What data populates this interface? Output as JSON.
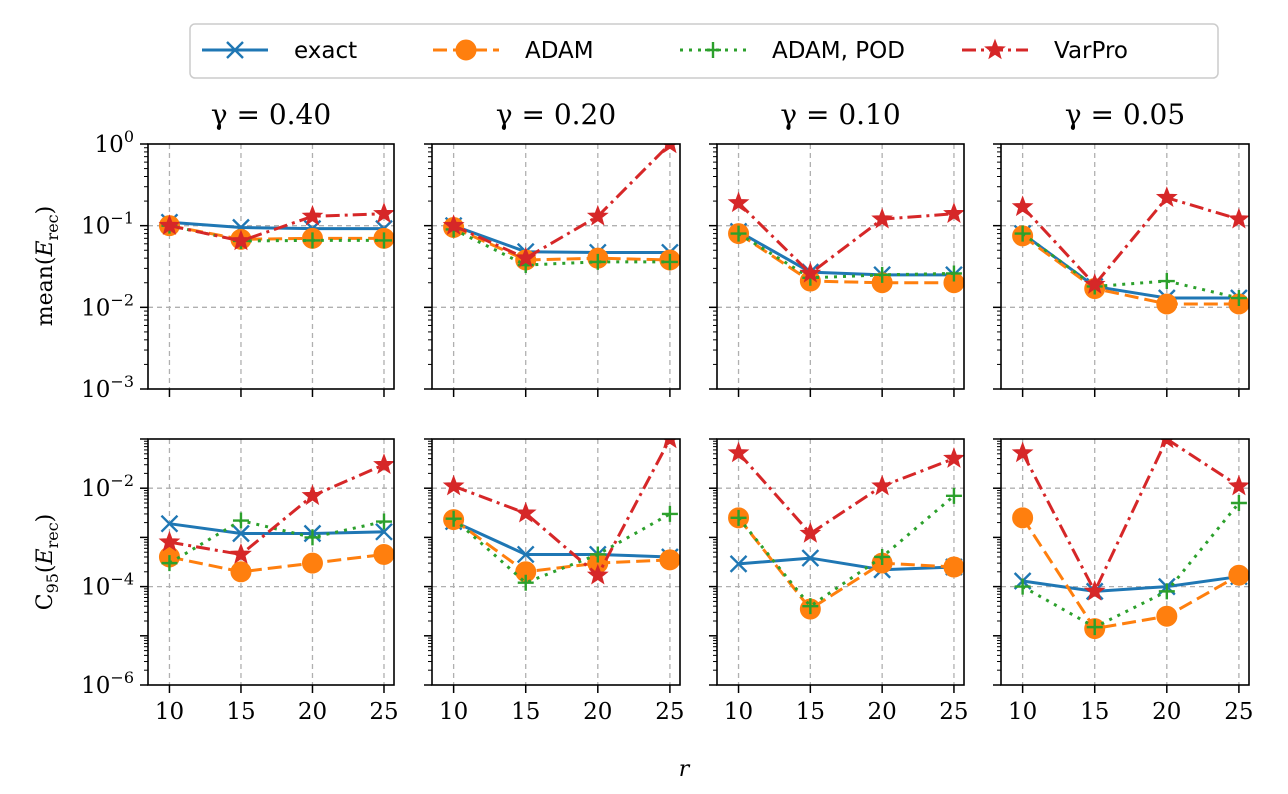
{
  "legend": {
    "entries": [
      {
        "label": "exact",
        "color": "#1f77b4",
        "marker": "x",
        "dash": "solid"
      },
      {
        "label": "ADAM",
        "color": "#ff7f0e",
        "marker": "circle",
        "dash": "dashed"
      },
      {
        "label": "ADAM, POD",
        "color": "#2ca02c",
        "marker": "plus",
        "dash": "dotted"
      },
      {
        "label": "VarPro",
        "color": "#d62728",
        "marker": "star",
        "dash": "dashdot"
      }
    ]
  },
  "xlabel": "r",
  "row_labels": [
    "mean(E",
    "C"
  ],
  "row_label_parts": {
    "mean": {
      "main": "mean(",
      "var": "E",
      "sub": "rec",
      "close": ")"
    },
    "c95": {
      "main": "C",
      "sub1": "95",
      "open": "(",
      "var": "E",
      "sub": "rec",
      "close": ")"
    }
  },
  "column_titles": [
    "γ = 0.40",
    "γ = 0.20",
    "γ = 0.10",
    "γ = 0.05"
  ],
  "chart_data": [
    {
      "type": "line",
      "title": "γ = 0.40",
      "row": "mean",
      "yscale": "log",
      "ylim": [
        0.001,
        1
      ],
      "x": [
        10,
        15,
        20,
        25
      ],
      "series": [
        {
          "name": "exact",
          "values": [
            0.11,
            0.095,
            0.092,
            0.092
          ]
        },
        {
          "name": "ADAM",
          "values": [
            0.1,
            0.068,
            0.07,
            0.07
          ]
        },
        {
          "name": "ADAM, POD",
          "values": [
            0.1,
            0.065,
            0.066,
            0.066
          ]
        },
        {
          "name": "VarPro",
          "values": [
            0.1,
            0.065,
            0.13,
            0.14
          ]
        }
      ]
    },
    {
      "type": "line",
      "title": "γ = 0.20",
      "row": "mean",
      "yscale": "log",
      "ylim": [
        0.001,
        1
      ],
      "x": [
        10,
        15,
        20,
        25
      ],
      "series": [
        {
          "name": "exact",
          "values": [
            0.1,
            0.048,
            0.047,
            0.047
          ]
        },
        {
          "name": "ADAM",
          "values": [
            0.095,
            0.038,
            0.04,
            0.038
          ]
        },
        {
          "name": "ADAM, POD",
          "values": [
            0.09,
            0.033,
            0.036,
            0.036
          ]
        },
        {
          "name": "VarPro",
          "values": [
            0.1,
            0.04,
            0.13,
            1.0
          ]
        }
      ]
    },
    {
      "type": "line",
      "title": "γ = 0.10",
      "row": "mean",
      "yscale": "log",
      "ylim": [
        0.001,
        1
      ],
      "x": [
        10,
        15,
        20,
        25
      ],
      "series": [
        {
          "name": "exact",
          "values": [
            0.085,
            0.027,
            0.025,
            0.025
          ]
        },
        {
          "name": "ADAM",
          "values": [
            0.08,
            0.021,
            0.02,
            0.02
          ]
        },
        {
          "name": "ADAM, POD",
          "values": [
            0.08,
            0.023,
            0.025,
            0.026
          ]
        },
        {
          "name": "VarPro",
          "values": [
            0.19,
            0.026,
            0.12,
            0.14
          ]
        }
      ]
    },
    {
      "type": "line",
      "title": "γ = 0.05",
      "row": "mean",
      "yscale": "log",
      "ylim": [
        0.001,
        1
      ],
      "x": [
        10,
        15,
        20,
        25
      ],
      "series": [
        {
          "name": "exact",
          "values": [
            0.08,
            0.018,
            0.013,
            0.013
          ]
        },
        {
          "name": "ADAM",
          "values": [
            0.075,
            0.017,
            0.011,
            0.011
          ]
        },
        {
          "name": "ADAM, POD",
          "values": [
            0.08,
            0.018,
            0.021,
            0.013
          ]
        },
        {
          "name": "VarPro",
          "values": [
            0.17,
            0.019,
            0.22,
            0.12
          ]
        }
      ]
    },
    {
      "type": "line",
      "row": "c95",
      "yscale": "log",
      "ylim": [
        1e-06,
        0.1
      ],
      "x": [
        10,
        15,
        20,
        25
      ],
      "series": [
        {
          "name": "exact",
          "values": [
            0.0019,
            0.0012,
            0.0012,
            0.0013
          ]
        },
        {
          "name": "ADAM",
          "values": [
            0.0004,
            0.0002,
            0.0003,
            0.00045
          ]
        },
        {
          "name": "ADAM, POD",
          "values": [
            0.0003,
            0.0022,
            0.001,
            0.0021
          ]
        },
        {
          "name": "VarPro",
          "values": [
            0.0008,
            0.00045,
            0.007,
            0.03
          ]
        }
      ]
    },
    {
      "type": "line",
      "row": "c95",
      "yscale": "log",
      "ylim": [
        1e-06,
        0.1
      ],
      "x": [
        10,
        15,
        20,
        25
      ],
      "series": [
        {
          "name": "exact",
          "values": [
            0.0021,
            0.00045,
            0.00045,
            0.0004
          ]
        },
        {
          "name": "ADAM",
          "values": [
            0.0023,
            0.0002,
            0.0003,
            0.00035
          ]
        },
        {
          "name": "ADAM, POD",
          "values": [
            0.0024,
            0.00012,
            0.00045,
            0.003
          ]
        },
        {
          "name": "VarPro",
          "values": [
            0.011,
            0.0031,
            0.00017,
            0.1
          ]
        }
      ]
    },
    {
      "type": "line",
      "row": "c95",
      "yscale": "log",
      "ylim": [
        1e-06,
        0.1
      ],
      "x": [
        10,
        15,
        20,
        25
      ],
      "series": [
        {
          "name": "exact",
          "values": [
            0.00029,
            0.00038,
            0.00022,
            0.00025
          ]
        },
        {
          "name": "ADAM",
          "values": [
            0.0025,
            3.5e-05,
            0.0003,
            0.00025
          ]
        },
        {
          "name": "ADAM, POD",
          "values": [
            0.0025,
            4e-05,
            0.0004,
            0.007
          ]
        },
        {
          "name": "VarPro",
          "values": [
            0.052,
            0.0012,
            0.011,
            0.04
          ]
        }
      ]
    },
    {
      "type": "line",
      "row": "c95",
      "yscale": "log",
      "ylim": [
        1e-06,
        0.1
      ],
      "x": [
        10,
        15,
        20,
        25
      ],
      "series": [
        {
          "name": "exact",
          "values": [
            0.00013,
            8e-05,
            0.0001,
            0.00016
          ]
        },
        {
          "name": "ADAM",
          "values": [
            0.0025,
            1.4e-05,
            2.5e-05,
            0.00017
          ]
        },
        {
          "name": "ADAM, POD",
          "values": [
            0.0001,
            1.5e-05,
            8e-05,
            0.005
          ]
        },
        {
          "name": "VarPro",
          "values": [
            0.052,
            8e-05,
            0.1,
            0.011
          ]
        }
      ]
    }
  ],
  "y_ticks": {
    "mean": [
      {
        "base": "10",
        "exp": "0"
      },
      {
        "base": "10",
        "exp": "−1"
      },
      {
        "base": "10",
        "exp": "−2"
      },
      {
        "base": "10",
        "exp": "−3"
      }
    ],
    "c95": [
      {
        "base": "10",
        "exp": "−2"
      },
      {
        "base": "10",
        "exp": "−4"
      },
      {
        "base": "10",
        "exp": "−6"
      }
    ]
  },
  "x_ticks": [
    "10",
    "15",
    "20",
    "25"
  ]
}
